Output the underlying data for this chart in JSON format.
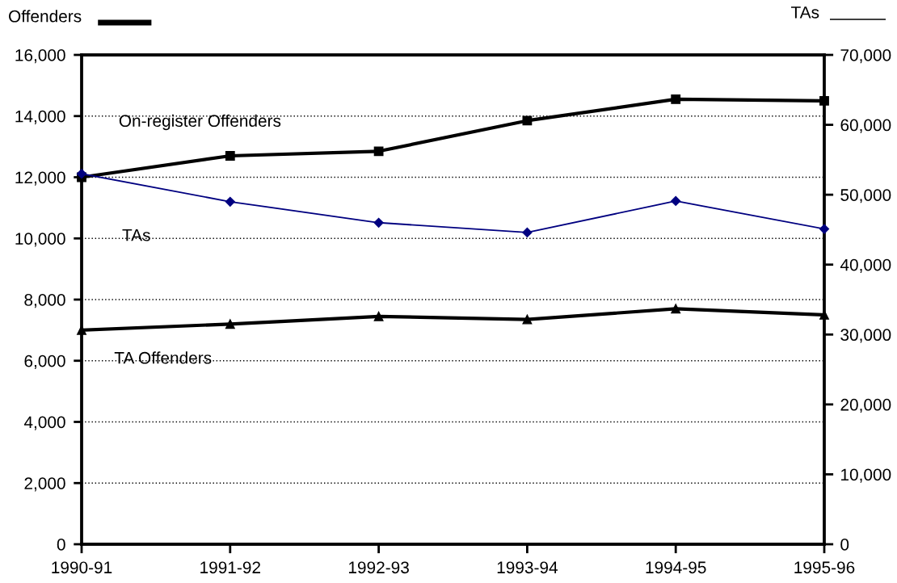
{
  "chart_data": {
    "type": "line",
    "categories": [
      "1990-91",
      "1991-92",
      "1992-93",
      "1993-94",
      "1994-95",
      "1995-96"
    ],
    "series": [
      {
        "name": "On-register Offenders",
        "color": "#000000",
        "marker": "square",
        "axis": "y",
        "values": [
          12000,
          12700,
          12850,
          13850,
          14550,
          14500
        ]
      },
      {
        "name": "TAs",
        "color": "#000080",
        "marker": "diamond",
        "axis": "y2",
        "values": [
          53000,
          49000,
          46000,
          44600,
          49100,
          45100
        ]
      },
      {
        "name": "TA Offenders",
        "color": "#000000",
        "marker": "triangle",
        "axis": "y",
        "values": [
          7000,
          7200,
          7450,
          7350,
          7700,
          7500
        ]
      }
    ],
    "ylabel": "Offenders",
    "y2label": "TAs",
    "ylim": [
      0,
      16000
    ],
    "yticks": [
      0,
      {
        "value": 2000,
        "label": "2,000"
      },
      {
        "value": 4000,
        "label": "4,000"
      },
      {
        "value": 6000,
        "label": "6,000"
      },
      {
        "value": 8000,
        "label": "8,000"
      },
      {
        "value": 10000,
        "label": "10,000"
      },
      {
        "value": 12000,
        "label": "12,000"
      },
      {
        "value": 14000,
        "label": "14,000"
      },
      {
        "value": 16000,
        "label": "16,000"
      }
    ],
    "y2lim": [
      0,
      70000
    ],
    "y2ticks": [
      0,
      {
        "value": 10000,
        "label": "10,000"
      },
      {
        "value": 20000,
        "label": "20,000"
      },
      {
        "value": 30000,
        "label": "30,000"
      },
      {
        "value": 40000,
        "label": "40,000"
      },
      {
        "value": 50000,
        "label": "50,000"
      },
      {
        "value": 60000,
        "label": "60,000"
      },
      {
        "value": 70000,
        "label": "70,000"
      }
    ],
    "grid": "y",
    "legend": false,
    "line_style": "solid"
  }
}
